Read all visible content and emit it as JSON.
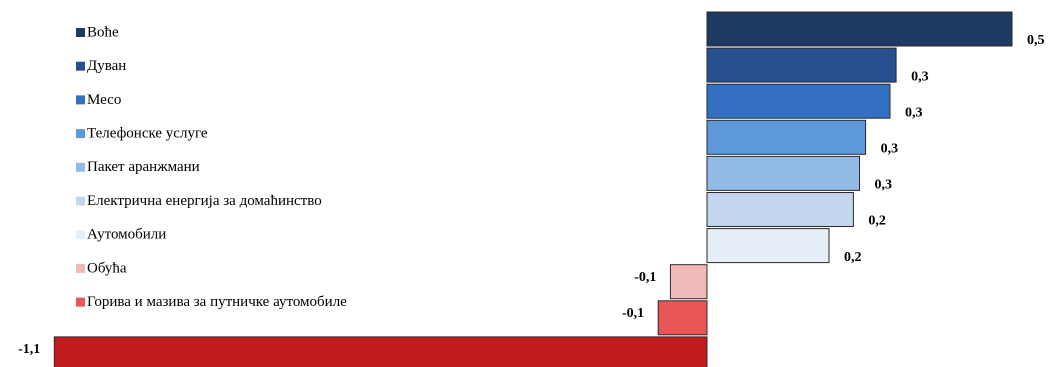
{
  "chart_data": {
    "type": "hbar",
    "categories": [
      "Воће",
      "Дуван",
      "Месо",
      "Телефонске услуге",
      "Пакет аранжмани",
      "Електрична енергија за домаћинство",
      "Аутомобили",
      "Обућа",
      "Горива и мазива за путничке аутомобиле",
      null
    ],
    "values": [
      0.5,
      0.31,
      0.3,
      0.26,
      0.25,
      0.24,
      0.2,
      -0.06,
      -0.08,
      -1.07
    ],
    "value_labels": [
      "0,5",
      "0,3",
      "0,3",
      "0,3",
      "0,3",
      "0,2",
      "0,2",
      "-0,1",
      "-0,1",
      "-1,1"
    ],
    "colors": [
      "#1f3a62",
      "#29508e",
      "#3470c2",
      "#5c98da",
      "#93bbe8",
      "#c3d6ee",
      "#e6eef8",
      "#f2b9b9",
      "#ea5656",
      "#c21a1a"
    ]
  }
}
